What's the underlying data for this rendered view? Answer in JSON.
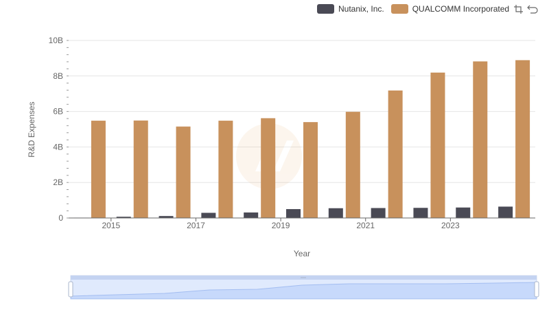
{
  "legend": {
    "items": [
      {
        "label": "Nutanix, Inc.",
        "color": "#4a4a55"
      },
      {
        "label": "QUALCOMM Incorporated",
        "color": "#c8915c"
      }
    ]
  },
  "toolbox": {
    "icons": [
      "zoom-select-icon",
      "zoom-reset-icon"
    ]
  },
  "chart_data": {
    "type": "bar",
    "xlabel": "Year",
    "ylabel": "R&D Expenses",
    "ylim": [
      0,
      10000000000
    ],
    "yticks": [
      0,
      2000000000,
      4000000000,
      6000000000,
      8000000000,
      10000000000
    ],
    "ytick_labels": [
      "0",
      "2B",
      "4B",
      "6B",
      "8B",
      "10B"
    ],
    "categories": [
      "2014",
      "2015",
      "2016",
      "2017",
      "2018",
      "2019",
      "2020",
      "2021",
      "2022",
      "2023",
      "2024"
    ],
    "xtick_labels_shown": [
      "2015",
      "2017",
      "2019",
      "2021",
      "2023"
    ],
    "grid": true,
    "legend_position": "top-right",
    "series": [
      {
        "name": "Nutanix, Inc.",
        "color": "#4a4a55",
        "values": [
          20000000,
          70000000,
          110000000,
          290000000,
          310000000,
          500000000,
          550000000,
          560000000,
          570000000,
          590000000,
          640000000
        ]
      },
      {
        "name": "QUALCOMM Incorporated",
        "color": "#c8915c",
        "values": [
          5480000000,
          5490000000,
          5150000000,
          5480000000,
          5620000000,
          5400000000,
          5980000000,
          7180000000,
          8190000000,
          8820000000,
          8890000000
        ]
      }
    ]
  }
}
